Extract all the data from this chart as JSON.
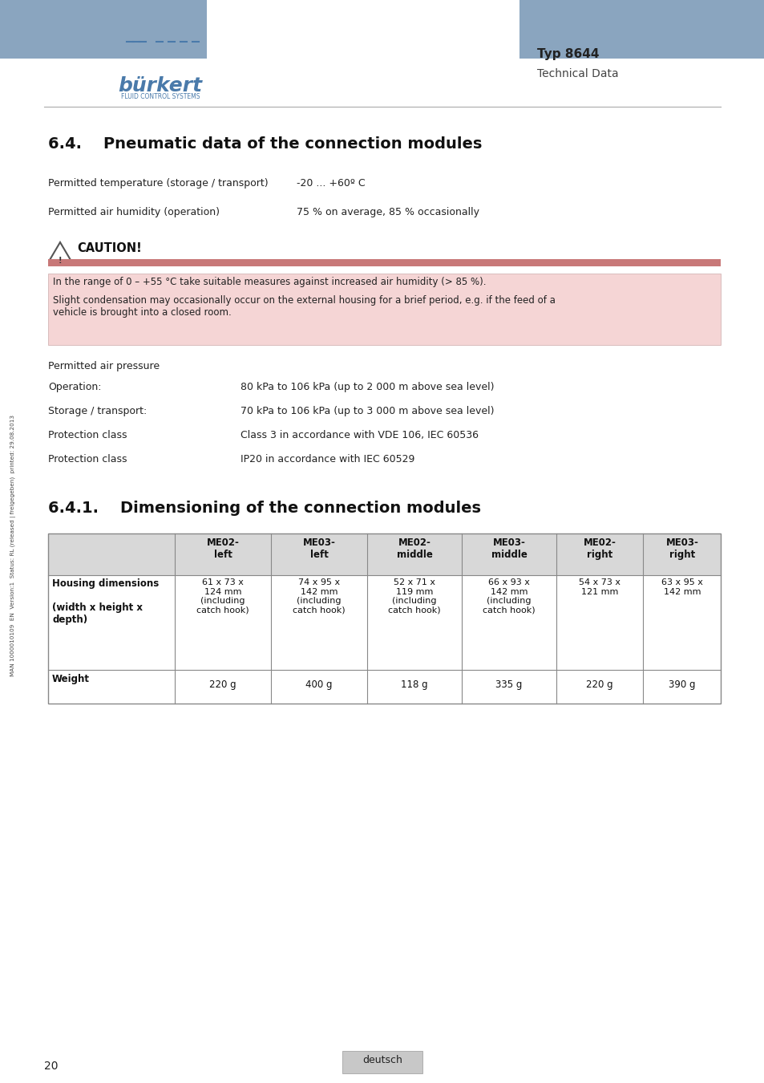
{
  "page_bg": "#ffffff",
  "header_bar_color": "#8aa5bf",
  "typ_text": "Typ 8644",
  "tech_text": "Technical Data",
  "logo_text": "bürkert",
  "logo_sub": "FLUID CONTROL SYSTEMS",
  "section_title": "6.4.    Pneumatic data of the connection modules",
  "param1_label": "Permitted temperature (storage / transport)",
  "param1_value": "-20 ... +60º C",
  "param2_label": "Permitted air humidity (operation)",
  "param2_value": "75 % on average, 85 % occasionally",
  "caution_title": "CAUTION!",
  "caution_bar_color": "#c87878",
  "caution_box_color": "#f5d5d5",
  "caution_text1": "In the range of 0 – +55 °C take suitable measures against increased air humidity (> 85 %).",
  "caution_text2": "Slight condensation may occasionally occur on the external housing for a brief period, e.g. if the feed of a\nvehicle is brought into a closed room.",
  "air_pressure_label": "Permitted air pressure",
  "op_label": "Operation:",
  "op_value": "80 kPa to 106 kPa (up to 2 000 m above sea level)",
  "stor_label": "Storage / transport:",
  "stor_value": "70 kPa to 106 kPa (up to 3 000 m above sea level)",
  "prot1_label": "Protection class",
  "prot1_value": "Class 3 in accordance with VDE 106, IEC 60536",
  "prot2_label": "Protection class",
  "prot2_value": "IP20 in accordance with IEC 60529",
  "section2_title": "6.4.1.    Dimensioning of the connection modules",
  "table_header": [
    "",
    "ME02-\nleft",
    "ME03-\nleft",
    "ME02-\nmiddle",
    "ME03-\nmiddle",
    "ME02-\nright",
    "ME03-\nright"
  ],
  "table_row1_label": "Housing dimensions\n\n(width x height x\ndepth)",
  "table_row1_values": [
    "61 x 73 x\n124 mm\n(including\ncatch hook)",
    "74 x 95 x\n142 mm\n(including\ncatch hook)",
    "52 x 71 x\n119 mm\n(including\ncatch hook)",
    "66 x 93 x\n142 mm\n(including\ncatch hook)",
    "54 x 73 x\n121 mm",
    "63 x 95 x\n142 mm"
  ],
  "table_row2_label": "Weight",
  "table_row2_values": [
    "220 g",
    "400 g",
    "118 g",
    "335 g",
    "220 g",
    "390 g"
  ],
  "side_text": "MAN 1000010109  EN  Version:1  Status: RL (released | freigegeben)  printed: 29.08.2013",
  "page_number": "20",
  "footer_button": "deutsch",
  "footer_button_color": "#c8c8c8",
  "separator_color": "#aaaaaa",
  "table_header_bg": "#d8d8d8",
  "table_border_color": "#888888"
}
